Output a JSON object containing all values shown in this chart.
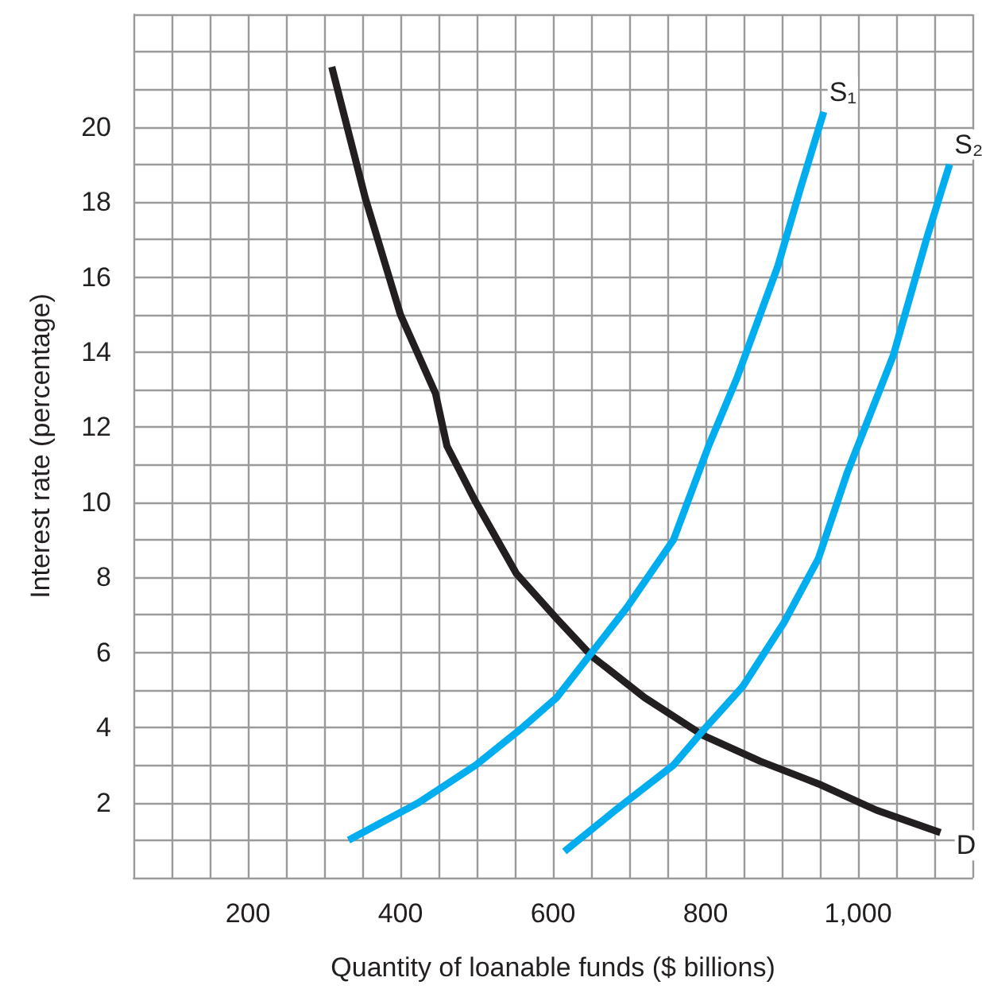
{
  "chart_data": {
    "type": "line",
    "xlabel": "Quantity of loanable funds ($ billions)",
    "ylabel": "Interest rate (percentage)",
    "xlim": [
      50,
      1150
    ],
    "ylim": [
      0,
      23
    ],
    "xticks": [
      {
        "value": 50,
        "label": null
      },
      {
        "value": 100,
        "label": null
      },
      {
        "value": 150,
        "label": null
      },
      200,
      {
        "value": 250,
        "label": null
      },
      {
        "value": 300,
        "label": null
      },
      {
        "value": 350,
        "label": null
      },
      400,
      {
        "value": 450,
        "label": null
      },
      {
        "value": 500,
        "label": null
      },
      {
        "value": 550,
        "label": null
      },
      600,
      {
        "value": 650,
        "label": null
      },
      {
        "value": 700,
        "label": null
      },
      {
        "value": 750,
        "label": null
      },
      800,
      {
        "value": 850,
        "label": null
      },
      {
        "value": 900,
        "label": null
      },
      {
        "value": 950,
        "label": null
      },
      {
        "value": 1000,
        "label": "1,000"
      },
      {
        "value": 1050,
        "label": null
      },
      {
        "value": 1100,
        "label": null
      },
      {
        "value": 1150,
        "label": null
      }
    ],
    "yticks": [
      {
        "value": 0,
        "label": null
      },
      {
        "value": 1,
        "label": null
      },
      2,
      {
        "value": 3,
        "label": null
      },
      4,
      {
        "value": 5,
        "label": null
      },
      6,
      {
        "value": 7,
        "label": null
      },
      8,
      {
        "value": 9,
        "label": null
      },
      10,
      {
        "value": 11,
        "label": null
      },
      12,
      {
        "value": 13,
        "label": null
      },
      14,
      {
        "value": 15,
        "label": null
      },
      16,
      {
        "value": 17,
        "label": null
      },
      18,
      {
        "value": 19,
        "label": null
      },
      20,
      {
        "value": 21,
        "label": null
      },
      {
        "value": 22,
        "label": null
      },
      {
        "value": 23,
        "label": null
      }
    ],
    "grid": true,
    "legend": false,
    "marker": "none",
    "line_style": "solid",
    "series": [
      {
        "name": "D",
        "color": "#231f20",
        "x": [
          310,
          354,
          400,
          446,
          461,
          499,
          552,
          605,
          651,
          720,
          796,
          872,
          948,
          1024,
          1108
        ],
        "values": [
          21.6,
          18.1,
          15,
          12.9,
          11.5,
          10,
          8.1,
          6.9,
          5.9,
          4.8,
          3.8,
          3.1,
          2.5,
          1.8,
          1.2
        ]
      },
      {
        "name": "S₁",
        "color": "#00aeef",
        "x": [
          332,
          424,
          499,
          560,
          605,
          651,
          697,
          758,
          804,
          841,
          895,
          925,
          955
        ],
        "values": [
          1.0,
          2.0,
          3.0,
          4.0,
          4.8,
          6.0,
          7.2,
          9.0,
          11.5,
          13.3,
          16.3,
          18.4,
          20.4
        ]
      },
      {
        "name": "S₂",
        "color": "#00aeef",
        "x": [
          615,
          682,
          758,
          796,
          849,
          903,
          948,
          986,
          1046,
          1091,
          1120
        ],
        "values": [
          0.7,
          1.8,
          3.0,
          3.9,
          5.1,
          6.8,
          8.5,
          10.8,
          13.9,
          17.1,
          19.0
        ]
      }
    ]
  }
}
